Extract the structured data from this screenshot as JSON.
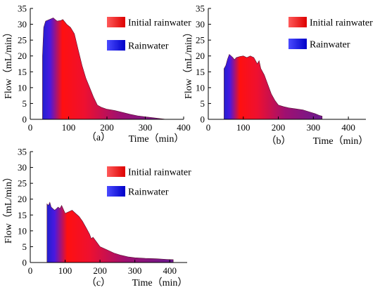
{
  "chart_data": [
    {
      "type": "area",
      "panel_label": "（a）",
      "xlabel": "Time（min）",
      "ylabel": "Flow（mL/min）",
      "xlim": [
        0,
        400
      ],
      "ylim": [
        0,
        35
      ],
      "x_ticks": [
        0,
        100,
        200,
        300,
        400
      ],
      "y_ticks": [
        0,
        5,
        10,
        15,
        20,
        25,
        30,
        35
      ],
      "grid": false,
      "legend_position": "top-right",
      "legend": [
        "Initial rainwater",
        "Rainwater"
      ],
      "series": [
        {
          "points": [
            [
              32,
              0
            ],
            [
              32,
              20
            ],
            [
              35,
              29
            ],
            [
              40,
              31
            ],
            [
              50,
              31.5
            ],
            [
              60,
              32
            ],
            [
              65,
              31.5
            ],
            [
              70,
              31
            ],
            [
              80,
              31.2
            ],
            [
              85,
              31.5
            ],
            [
              95,
              30
            ],
            [
              105,
              29
            ],
            [
              115,
              27
            ],
            [
              125,
              22
            ],
            [
              135,
              17
            ],
            [
              145,
              13
            ],
            [
              155,
              10
            ],
            [
              165,
              7
            ],
            [
              175,
              4.5
            ],
            [
              185,
              3.8
            ],
            [
              200,
              3.2
            ],
            [
              220,
              2.8
            ],
            [
              240,
              2.2
            ],
            [
              260,
              1.6
            ],
            [
              280,
              1.1
            ],
            [
              300,
              0.8
            ],
            [
              320,
              0.5
            ],
            [
              340,
              0.2
            ],
            [
              355,
              0
            ]
          ]
        }
      ]
    },
    {
      "type": "area",
      "panel_label": "（b）",
      "xlabel": "Time（min）",
      "ylabel": "Flow（mL/min）",
      "xlim": [
        0,
        450
      ],
      "ylim": [
        0,
        35
      ],
      "x_ticks": [
        0,
        100,
        200,
        300,
        400
      ],
      "y_ticks": [
        0,
        5,
        10,
        15,
        20,
        25,
        30,
        35
      ],
      "grid": false,
      "legend_position": "top-right",
      "legend": [
        "Initial rainwater",
        "Rainwater"
      ],
      "series": [
        {
          "points": [
            [
              45,
              0
            ],
            [
              45,
              16
            ],
            [
              50,
              17
            ],
            [
              55,
              19
            ],
            [
              60,
              20.5
            ],
            [
              65,
              20
            ],
            [
              70,
              19.5
            ],
            [
              75,
              18.8
            ],
            [
              80,
              19.5
            ],
            [
              90,
              19.8
            ],
            [
              100,
              20
            ],
            [
              110,
              19.5
            ],
            [
              120,
              20
            ],
            [
              130,
              19.5
            ],
            [
              140,
              17.5
            ],
            [
              145,
              18.5
            ],
            [
              150,
              16
            ],
            [
              160,
              14
            ],
            [
              170,
              11
            ],
            [
              180,
              8
            ],
            [
              190,
              6
            ],
            [
              200,
              4.5
            ],
            [
              215,
              4
            ],
            [
              230,
              3.6
            ],
            [
              250,
              3.3
            ],
            [
              270,
              3
            ],
            [
              290,
              2.3
            ],
            [
              305,
              1.8
            ],
            [
              318,
              1.2
            ],
            [
              325,
              1
            ],
            [
              325,
              0
            ]
          ]
        }
      ]
    },
    {
      "type": "area",
      "panel_label": "（c）",
      "xlabel": "Time（min）",
      "ylabel": "Flow（mL/min）",
      "xlim": [
        0,
        450
      ],
      "ylim": [
        0,
        35
      ],
      "x_ticks": [
        0,
        100,
        200,
        300,
        400
      ],
      "y_ticks": [
        0,
        5,
        10,
        15,
        20,
        25,
        30,
        35
      ],
      "grid": false,
      "legend_position": "top-right",
      "legend": [
        "Initial rainwater",
        "Rainwater"
      ],
      "series": [
        {
          "points": [
            [
              48,
              0
            ],
            [
              48,
              18.5
            ],
            [
              52,
              18
            ],
            [
              56,
              19
            ],
            [
              60,
              17.5
            ],
            [
              65,
              17
            ],
            [
              70,
              16.5
            ],
            [
              75,
              17
            ],
            [
              80,
              17.5
            ],
            [
              85,
              17
            ],
            [
              90,
              18
            ],
            [
              95,
              16.8
            ],
            [
              100,
              15.5
            ],
            [
              110,
              16
            ],
            [
              120,
              16.5
            ],
            [
              130,
              15.5
            ],
            [
              140,
              14.5
            ],
            [
              150,
              13
            ],
            [
              160,
              11
            ],
            [
              170,
              9
            ],
            [
              175,
              7.5
            ],
            [
              180,
              8
            ],
            [
              190,
              6.5
            ],
            [
              200,
              5
            ],
            [
              220,
              4
            ],
            [
              240,
              3
            ],
            [
              260,
              2.3
            ],
            [
              280,
              1.8
            ],
            [
              300,
              1.5
            ],
            [
              330,
              1.3
            ],
            [
              360,
              1.2
            ],
            [
              390,
              1
            ],
            [
              410,
              0.9
            ],
            [
              410,
              0
            ]
          ]
        }
      ]
    }
  ]
}
